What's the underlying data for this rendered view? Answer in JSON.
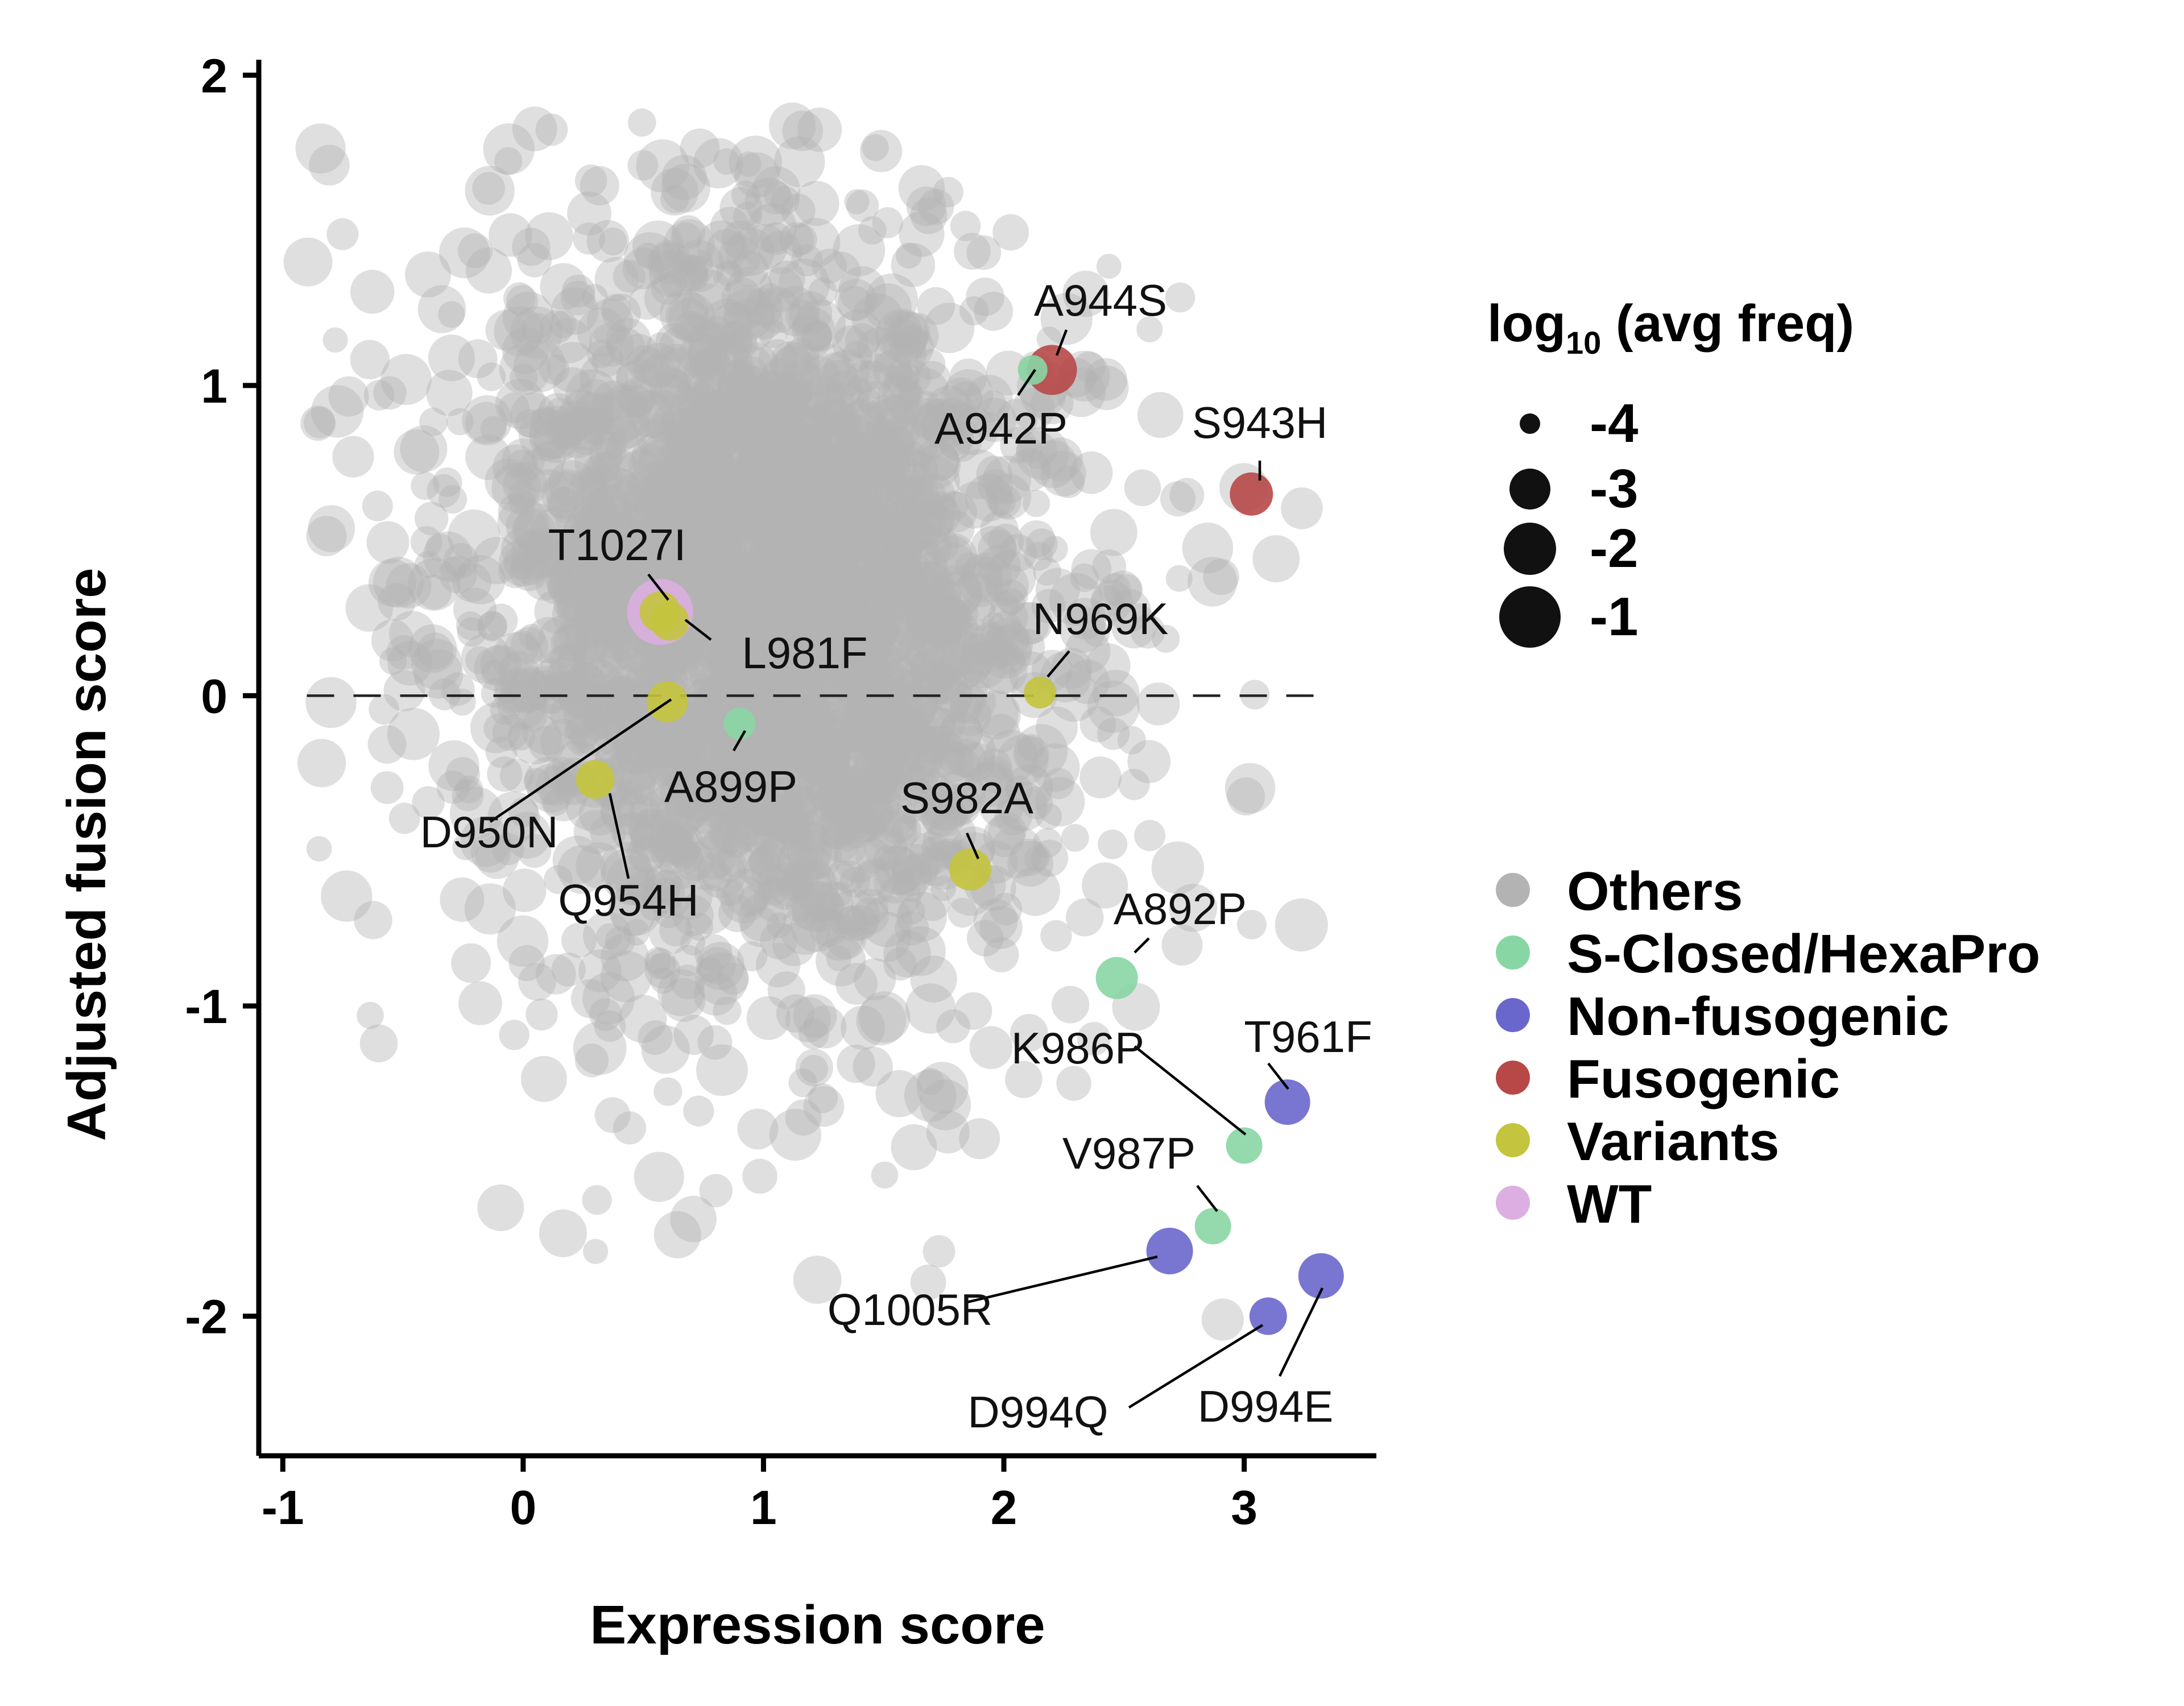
{
  "chart_data": {
    "type": "scatter",
    "xlabel": "Expression score",
    "ylabel": "Adjusted fusion score",
    "xlim": [
      -1.1,
      3.55
    ],
    "ylim": [
      -2.45,
      2.05
    ],
    "xticks": [
      -1,
      0,
      1,
      2,
      3
    ],
    "yticks": [
      -2,
      -1,
      0,
      1,
      2
    ],
    "reference_line": {
      "y": 0,
      "style": "dashed",
      "x_range": [
        -0.9,
        3.3
      ]
    },
    "grid": false,
    "legend": {
      "placement": "right",
      "entries": [
        {
          "label": "Others",
          "color": "#b3b3b3"
        },
        {
          "label": "S-Closed/HexaPro",
          "color": "#88d6a4"
        },
        {
          "label": "Non-fusogenic",
          "color": "#6a67cc"
        },
        {
          "label": "Fusogenic",
          "color": "#b84848"
        },
        {
          "label": "Variants",
          "color": "#c4c43e"
        },
        {
          "label": "WT",
          "color": "#ddaee2"
        }
      ]
    },
    "size_legend": {
      "title_main": "log",
      "title_sub": "10",
      "title_rest": " (avg freq)",
      "entries": [
        {
          "label": "-4",
          "value": -4
        },
        {
          "label": "-3",
          "value": -3
        },
        {
          "label": "-2",
          "value": -2
        },
        {
          "label": "-1",
          "value": -1
        }
      ]
    },
    "highlighted_points": [
      {
        "label": "A944S",
        "x": 2.2,
        "y": 1.05,
        "group": "Fusogenic",
        "log_freq": -2.2
      },
      {
        "label": "A942P",
        "x": 2.12,
        "y": 1.05,
        "group": "S-Closed/HexaPro",
        "log_freq": -4
      },
      {
        "label": "S943H",
        "x": 3.03,
        "y": 0.65,
        "group": "Fusogenic",
        "log_freq": -2.8
      },
      {
        "label": "T1027I",
        "x": 0.57,
        "y": 0.27,
        "group": "Variants",
        "log_freq": -3.0
      },
      {
        "label": "WT",
        "x": 0.57,
        "y": 0.27,
        "group": "WT",
        "log_freq": 0
      },
      {
        "label": "L981F",
        "x": 0.61,
        "y": 0.24,
        "group": "Variants",
        "log_freq": -3.2
      },
      {
        "label": "N969K",
        "x": 2.15,
        "y": 0.01,
        "group": "Variants",
        "log_freq": -3.8
      },
      {
        "label": "D950N",
        "x": 0.6,
        "y": -0.02,
        "group": "Variants",
        "log_freq": -3.0
      },
      {
        "label": "A899P",
        "x": 0.9,
        "y": -0.09,
        "group": "S-Closed/HexaPro",
        "log_freq": -3.8
      },
      {
        "label": "Q954H",
        "x": 0.3,
        "y": -0.27,
        "group": "Variants",
        "log_freq": -3.2
      },
      {
        "label": "S982A",
        "x": 1.86,
        "y": -0.56,
        "group": "Variants",
        "log_freq": -2.9
      },
      {
        "label": "A892P",
        "x": 2.47,
        "y": -0.91,
        "group": "S-Closed/HexaPro",
        "log_freq": -2.9
      },
      {
        "label": "T961F",
        "x": 3.18,
        "y": -1.31,
        "group": "Non-fusogenic",
        "log_freq": -2.6
      },
      {
        "label": "K986P",
        "x": 3.0,
        "y": -1.45,
        "group": "S-Closed/HexaPro",
        "log_freq": -3.4
      },
      {
        "label": "V987P",
        "x": 2.87,
        "y": -1.71,
        "group": "S-Closed/HexaPro",
        "log_freq": -3.4
      },
      {
        "label": "Q1005R",
        "x": 2.69,
        "y": -1.79,
        "group": "Non-fusogenic",
        "log_freq": -2.5
      },
      {
        "label": "D994E",
        "x": 3.32,
        "y": -1.87,
        "group": "Non-fusogenic",
        "log_freq": -2.6
      },
      {
        "label": "D994Q",
        "x": 3.1,
        "y": -2.0,
        "group": "Non-fusogenic",
        "log_freq": -3.3
      }
    ],
    "others_cloud": {
      "group": "Others",
      "approx_count": 2600,
      "center": [
        1.0,
        0.3
      ],
      "spread": [
        0.55,
        0.55
      ],
      "x_range": [
        -0.95,
        3.25
      ],
      "y_range": [
        -2.05,
        1.85
      ],
      "log_freq_range": [
        -4,
        -1.5
      ],
      "opacity": 0.42
    }
  }
}
